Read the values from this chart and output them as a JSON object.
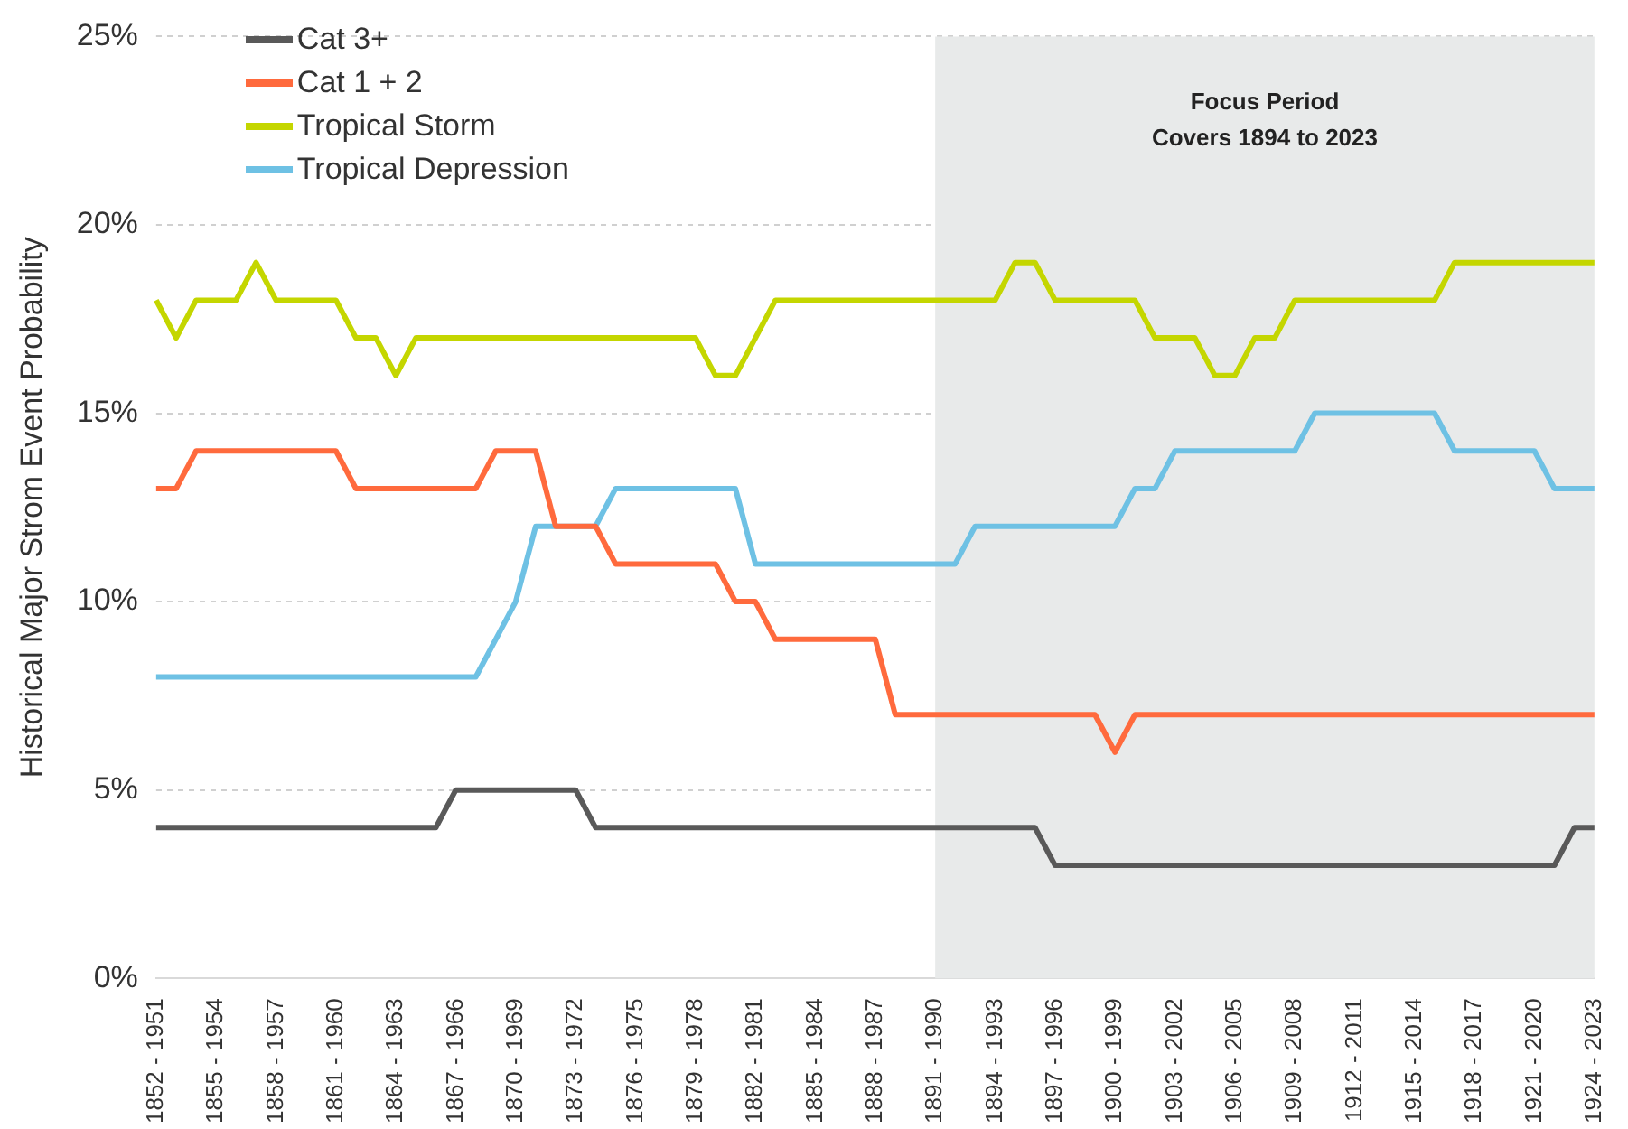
{
  "chart_data": {
    "type": "line",
    "ylabel": "Historical Major Strom Event Probability",
    "categories": [
      "1852 - 1951",
      null,
      null,
      "1855 - 1954",
      null,
      null,
      "1858 - 1957",
      null,
      null,
      "1861 - 1960",
      null,
      null,
      "1864 - 1963",
      null,
      null,
      "1867 - 1966",
      null,
      null,
      "1870 - 1969",
      null,
      null,
      "1873 - 1972",
      null,
      null,
      "1876 - 1975",
      null,
      null,
      "1879 - 1978",
      null,
      null,
      "1882 - 1981",
      null,
      null,
      "1885 - 1984",
      null,
      null,
      "1888 - 1987",
      null,
      null,
      "1891 - 1990",
      null,
      null,
      "1894 - 1993",
      null,
      null,
      "1897 - 1996",
      null,
      null,
      "1900 - 1999",
      null,
      null,
      "1903 - 2002",
      null,
      null,
      "1906 - 2005",
      null,
      null,
      "1909 - 2008",
      null,
      null,
      "1912 - 2011",
      null,
      null,
      "1915 - 2014",
      null,
      null,
      "1918 - 2017",
      null,
      null,
      "1921 - 2020",
      null,
      null,
      "1924 - 2023"
    ],
    "series": [
      {
        "name": "Cat 3+",
        "color": "#595959",
        "values": [
          4,
          4,
          4,
          4,
          4,
          4,
          4,
          4,
          4,
          4,
          4,
          4,
          4,
          4,
          4,
          5,
          5,
          5,
          5,
          5,
          5,
          5,
          4,
          4,
          4,
          4,
          4,
          4,
          4,
          4,
          4,
          4,
          4,
          4,
          4,
          4,
          4,
          4,
          4,
          4,
          4,
          4,
          4,
          4,
          4,
          3,
          3,
          3,
          3,
          3,
          3,
          3,
          3,
          3,
          3,
          3,
          3,
          3,
          3,
          3,
          3,
          3,
          3,
          3,
          3,
          3,
          3,
          3,
          3,
          3,
          3,
          4,
          4
        ]
      },
      {
        "name": "Cat 1 + 2",
        "color": "#ff6a3d",
        "values": [
          13,
          13,
          14,
          14,
          14,
          14,
          14,
          14,
          14,
          14,
          13,
          13,
          13,
          13,
          13,
          13,
          13,
          14,
          14,
          14,
          12,
          12,
          12,
          11,
          11,
          11,
          11,
          11,
          11,
          10,
          10,
          9,
          9,
          9,
          9,
          9,
          9,
          7,
          7,
          7,
          7,
          7,
          7,
          7,
          7,
          7,
          7,
          7,
          6,
          7,
          7,
          7,
          7,
          7,
          7,
          7,
          7,
          7,
          7,
          7,
          7,
          7,
          7,
          7,
          7,
          7,
          7,
          7,
          7,
          7,
          7,
          7,
          7
        ]
      },
      {
        "name": "Tropical Storm",
        "color": "#c4d600",
        "values": [
          18,
          17,
          18,
          18,
          18,
          19,
          18,
          18,
          18,
          18,
          17,
          17,
          16,
          17,
          17,
          17,
          17,
          17,
          17,
          17,
          17,
          17,
          17,
          17,
          17,
          17,
          17,
          17,
          16,
          16,
          17,
          18,
          18,
          18,
          18,
          18,
          18,
          18,
          18,
          18,
          18,
          18,
          18,
          19,
          19,
          18,
          18,
          18,
          18,
          18,
          17,
          17,
          17,
          16,
          16,
          17,
          17,
          18,
          18,
          18,
          18,
          18,
          18,
          18,
          18,
          19,
          19,
          19,
          19,
          19,
          19,
          19,
          19
        ]
      },
      {
        "name": "Tropical Depression",
        "color": "#6ec1e4",
        "values": [
          8,
          8,
          8,
          8,
          8,
          8,
          8,
          8,
          8,
          8,
          8,
          8,
          8,
          8,
          8,
          8,
          8,
          9,
          10,
          12,
          12,
          12,
          12,
          13,
          13,
          13,
          13,
          13,
          13,
          13,
          11,
          11,
          11,
          11,
          11,
          11,
          11,
          11,
          11,
          11,
          11,
          12,
          12,
          12,
          12,
          12,
          12,
          12,
          12,
          13,
          13,
          14,
          14,
          14,
          14,
          14,
          14,
          14,
          15,
          15,
          15,
          15,
          15,
          15,
          15,
          14,
          14,
          14,
          14,
          14,
          13,
          13,
          13
        ]
      }
    ],
    "ylim": [
      0,
      25
    ],
    "yticks": [
      {
        "value": 0,
        "label": "0%"
      },
      {
        "value": 5,
        "label": "5%"
      },
      {
        "value": 10,
        "label": "10%"
      },
      {
        "value": 15,
        "label": "15%"
      },
      {
        "value": 20,
        "label": "20%"
      },
      {
        "value": 25,
        "label": "25%"
      }
    ],
    "bands": [
      {
        "axis": "x",
        "from": "1891 - 1990",
        "to": "1924 - 2023",
        "label": "Focus Period\nCovers 1894 to 2023",
        "color": "#e8eaea"
      }
    ],
    "grid": "y",
    "legend": "top left",
    "marker": "none",
    "line_style": "solid"
  }
}
